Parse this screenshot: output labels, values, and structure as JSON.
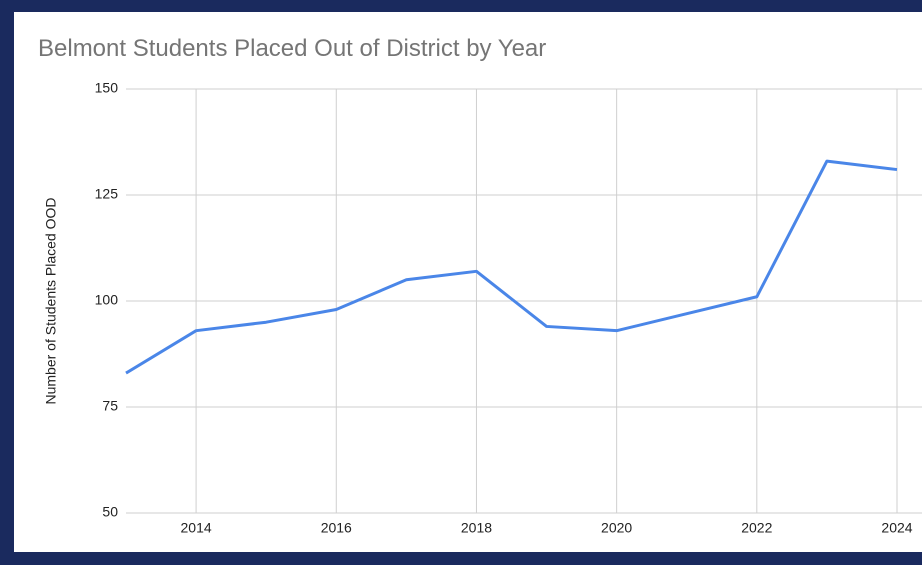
{
  "chart_data": {
    "type": "line",
    "title": "Belmont Students Placed Out of District by Year",
    "y_label": "Number of Students Placed OOD",
    "x": [
      2013,
      2014,
      2015,
      2016,
      2017,
      2018,
      2019,
      2020,
      2021,
      2022,
      2023,
      2024
    ],
    "series": [
      {
        "name": "Students Placed OOD",
        "color": "#4a86e8",
        "values": [
          83,
          93,
          95,
          98,
          105,
          107,
          94,
          93,
          97,
          101,
          133,
          131
        ]
      }
    ],
    "xlim": [
      2013,
      2024
    ],
    "xticks": [
      2014,
      2016,
      2018,
      2020,
      2022,
      2024
    ],
    "ylim": [
      50,
      150
    ],
    "yticks": [
      50,
      75,
      100,
      125,
      150
    ],
    "grid": true
  }
}
